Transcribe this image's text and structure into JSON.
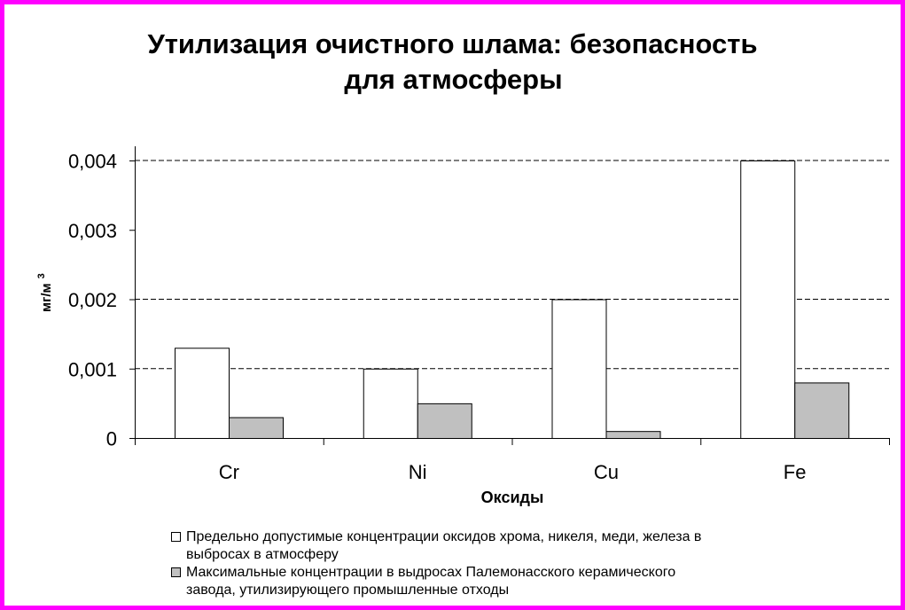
{
  "title_lines": [
    "Утилизация очистного шлама:  безопасность",
    "для атмосферы"
  ],
  "chart_data": {
    "type": "bar",
    "title": "Утилизация очистного шлама:  безопасность для атмосферы",
    "xlabel": "Оксиды",
    "ylabel": "мг/м",
    "ylabel_superscript": "3",
    "categories": [
      "Cr",
      "Ni",
      "Cu",
      "Fe"
    ],
    "y_ticks": [
      "0",
      "0,001",
      "0,002",
      "0,003",
      "0,004"
    ],
    "ylim": [
      0,
      0.004
    ],
    "tick_values": [
      0,
      0.001,
      0.002,
      0.003,
      0.004
    ],
    "gridlines": "dashed at 0,001; 0,002; 0,004",
    "legend_position": "bottom",
    "series": [
      {
        "name": "Предельно допустимые концентрации оксидов хрома, никеля, меди, железа в выбросах в атмосферу",
        "legend_lines": [
          "Предельно допустимые концентрации оксидов хрома, никеля, меди, железа в",
          "выбросах в атмосферу"
        ],
        "values": [
          0.0013,
          0.001,
          0.002,
          0.004
        ],
        "color": "#ffffff"
      },
      {
        "name": "Максимальные концентрации в выдросах Палемонасского керамического завода, утилизирующего промышленные отходы",
        "legend_lines": [
          "Максимальные концентрации в выдросах Палемонасского керамического",
          "завода, утилизирующего промышленные отходы"
        ],
        "values": [
          0.0003,
          0.0005,
          0.0001,
          0.0008
        ],
        "color": "#c0c0c0"
      }
    ]
  },
  "colors": {
    "frame": "#ff00ff",
    "axis": "#000000",
    "bar_outline": "#000000"
  }
}
